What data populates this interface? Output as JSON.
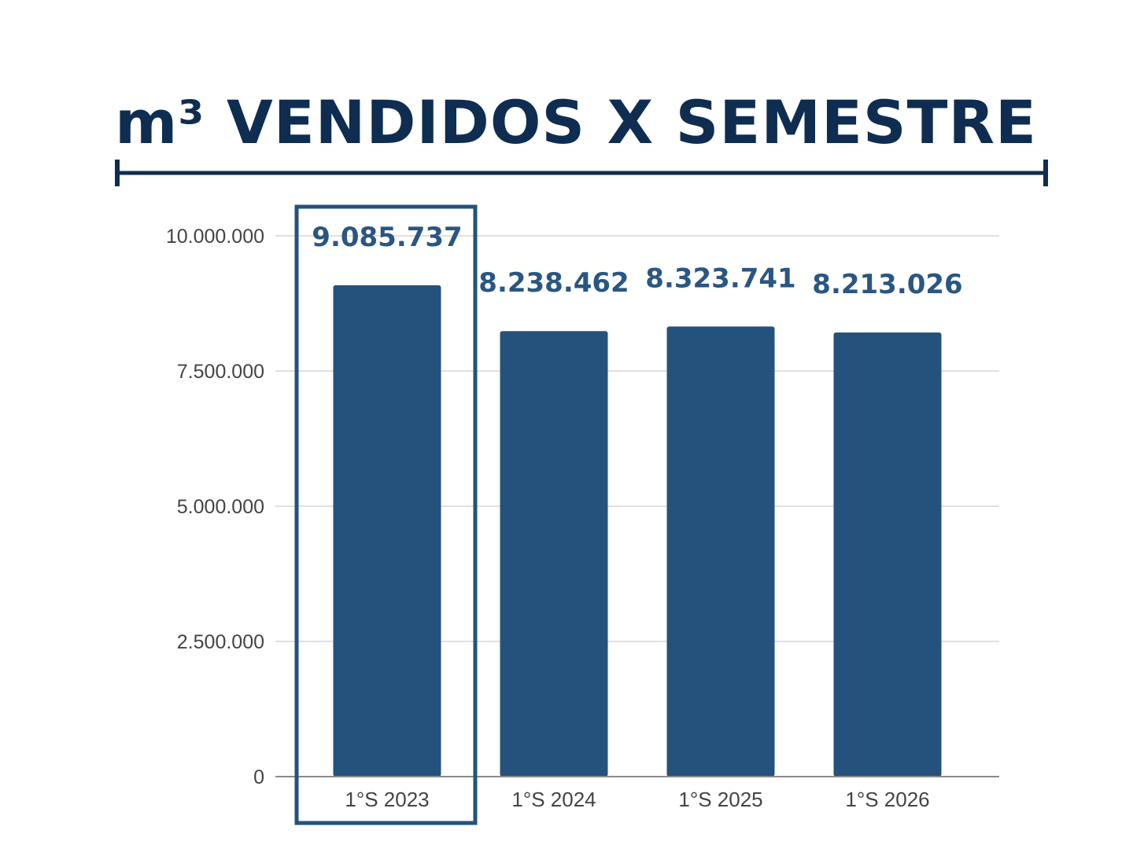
{
  "colors": {
    "title": "#0f2d50",
    "bar": "#24527d",
    "value_label": "#2a5682",
    "grid": "#d6d6d6",
    "axis": "#8a8a8a",
    "tick_text": "#444444",
    "highlight_box": "#24527d"
  },
  "chart_data": {
    "type": "bar",
    "title": "m³ VENDIDOS X SEMESTRE",
    "xlabel": "",
    "ylabel": "",
    "categories": [
      "1°S 2023",
      "1°S 2024",
      "1°S 2025",
      "1°S 2026"
    ],
    "values": [
      9085737,
      8238462,
      8323741,
      8213026
    ],
    "value_labels": [
      "9.085.737",
      "8.238.462",
      "8.323.741",
      "8.213.026"
    ],
    "ylim": [
      0,
      10000000
    ],
    "yticks": [
      0,
      2500000,
      5000000,
      7500000,
      10000000
    ],
    "ytick_labels": [
      "0",
      "2.500.000",
      "5.000.000",
      "7.500.000",
      "10.000.000"
    ],
    "grid": true,
    "highlighted_category": "1°S 2023"
  }
}
